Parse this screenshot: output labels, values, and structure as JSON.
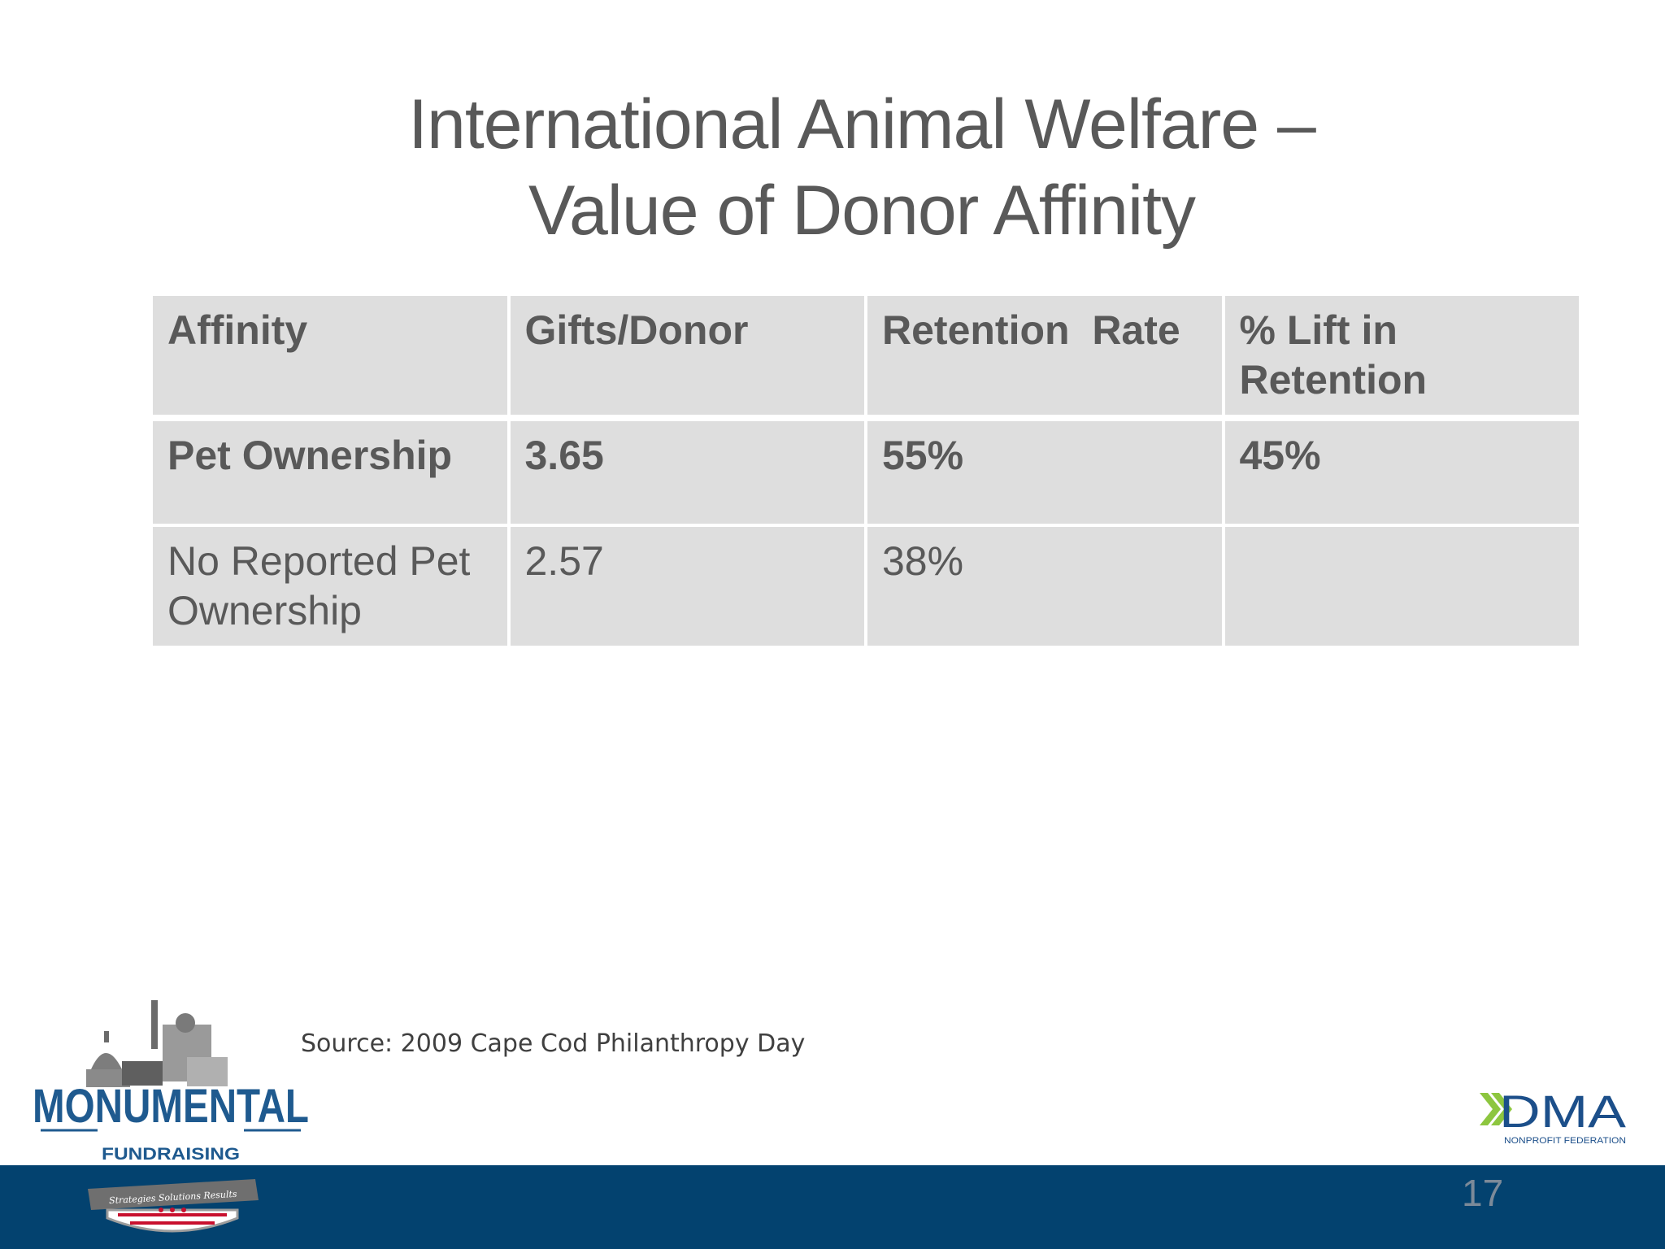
{
  "slide": {
    "title_line1": "International Animal Welfare –",
    "title_line2": "Value of Donor Affinity",
    "source": "Source: 2009 Cape Cod Philanthropy Day",
    "page_number": "17"
  },
  "table": {
    "headers": [
      "Affinity",
      "Gifts/Donor",
      "Retention  Rate",
      "% Lift in Retention"
    ],
    "rows": [
      [
        "Pet Ownership",
        "3.65",
        "55%",
        "45%"
      ],
      [
        "No Reported Pet Ownership",
        "2.57",
        "38%",
        ""
      ]
    ]
  },
  "logos": {
    "left_name": "MONUMENTAL",
    "left_sub": "FUNDRAISING",
    "left_banner": "Strategies  Solutions  Results",
    "right_name": "DMA",
    "right_sub": "NONPROFIT FEDERATION"
  },
  "colors": {
    "title": "#595959",
    "table_cell": "#dedede",
    "footer_bar": "#03426f",
    "dma_green": "#8dc63f",
    "dma_blue": "#1c4f8a"
  }
}
